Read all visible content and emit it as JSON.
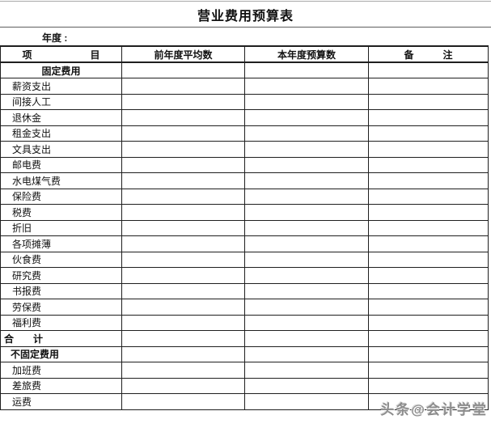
{
  "page": {
    "title": "营业费用预算表",
    "year_label": "年度 :",
    "watermark": "头条@会计学堂"
  },
  "colors": {
    "page-bg": "#ffffff",
    "text-color": "#111111",
    "border-color": "#1f1f1f",
    "faint-line": "#a8a8a8",
    "rule-line": "#5f5f5f",
    "watermark-color": "#8c8c8c"
  },
  "table": {
    "columns": [
      "项　　　　　　目",
      "前年度平均数",
      "本年度预算数",
      "备　　　注"
    ],
    "empty_cell_value": "",
    "rows": [
      {
        "label": "固定费用",
        "type": "section"
      },
      {
        "label": "薪资支出",
        "type": "item"
      },
      {
        "label": "间接人工",
        "type": "item"
      },
      {
        "label": "退休金",
        "type": "item"
      },
      {
        "label": "租金支出",
        "type": "item"
      },
      {
        "label": "文具支出",
        "type": "item"
      },
      {
        "label": "邮电费",
        "type": "item"
      },
      {
        "label": "水电煤气费",
        "type": "item"
      },
      {
        "label": "保险费",
        "type": "item"
      },
      {
        "label": "税费",
        "type": "item"
      },
      {
        "label": "折旧",
        "type": "item"
      },
      {
        "label": "各项摊薄",
        "type": "item"
      },
      {
        "label": "伙食费",
        "type": "item"
      },
      {
        "label": "研究费",
        "type": "item"
      },
      {
        "label": "书报费",
        "type": "item"
      },
      {
        "label": "劳保费",
        "type": "item"
      },
      {
        "label": "福利费",
        "type": "item"
      },
      {
        "label": "合　　计",
        "type": "total"
      },
      {
        "label": "不固定费用",
        "type": "section2"
      },
      {
        "label": "加班费",
        "type": "item"
      },
      {
        "label": "差旅费",
        "type": "item"
      },
      {
        "label": "运费",
        "type": "item"
      }
    ]
  }
}
